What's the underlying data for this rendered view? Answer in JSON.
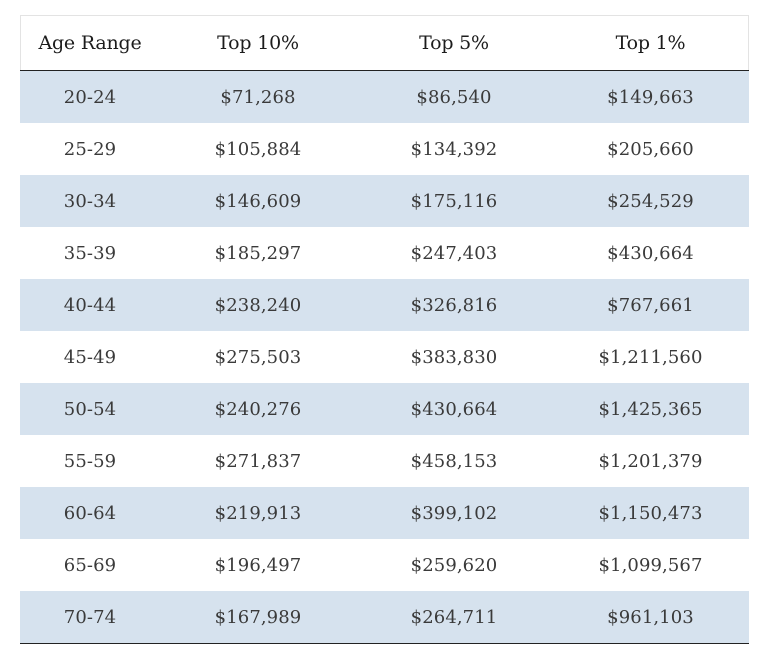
{
  "chart_data": {
    "type": "table",
    "columns": [
      "Age Range",
      "Top 10%",
      "Top 5%",
      "Top 1%"
    ],
    "rows": [
      [
        "20-24",
        "$71,268",
        "$86,540",
        "$149,663"
      ],
      [
        "25-29",
        "$105,884",
        "$134,392",
        "$205,660"
      ],
      [
        "30-34",
        "$146,609",
        "$175,116",
        "$254,529"
      ],
      [
        "35-39",
        "$185,297",
        "$247,403",
        "$430,664"
      ],
      [
        "40-44",
        "$238,240",
        "$326,816",
        "$767,661"
      ],
      [
        "45-49",
        "$275,503",
        "$383,830",
        "$1,211,560"
      ],
      [
        "50-54",
        "$240,276",
        "$430,664",
        "$1,425,365"
      ],
      [
        "55-59",
        "$271,837",
        "$458,153",
        "$1,201,379"
      ],
      [
        "60-64",
        "$219,913",
        "$399,102",
        "$1,150,473"
      ],
      [
        "65-69",
        "$196,497",
        "$259,620",
        "$1,099,567"
      ],
      [
        "70-74",
        "$167,989",
        "$264,711",
        "$961,103"
      ]
    ],
    "colors": {
      "stripe": "#d6e2ee",
      "background": "#ffffff",
      "rule": "#222222"
    }
  }
}
